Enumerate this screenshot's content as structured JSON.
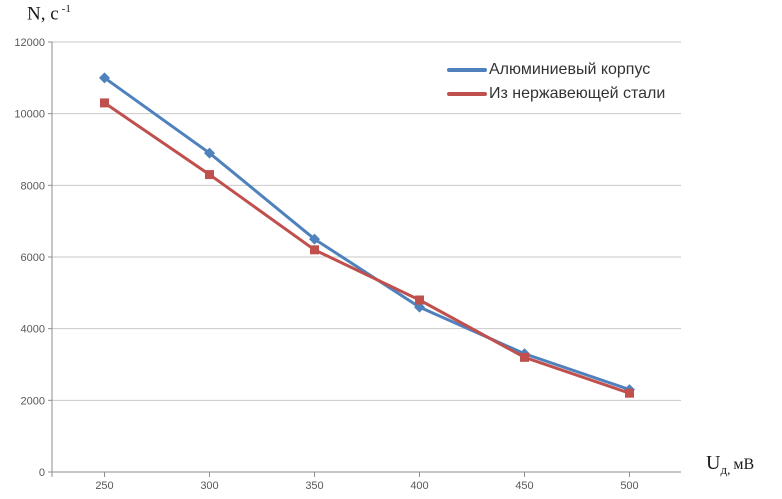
{
  "chart_data": {
    "type": "line",
    "x": [
      250,
      300,
      350,
      400,
      450,
      500
    ],
    "series": [
      {
        "name": "Алюминиевый корпус",
        "color": "#4F81BD",
        "marker": "diamond",
        "values": [
          11000,
          8900,
          6500,
          4600,
          3300,
          2300
        ]
      },
      {
        "name": "Из нержавеющей стали",
        "color": "#C0504D",
        "marker": "square",
        "values": [
          10300,
          8300,
          6200,
          4800,
          3200,
          2200
        ]
      }
    ],
    "ylabel": {
      "base": "N, с",
      "sup": "-1"
    },
    "xlabel": {
      "base": "U",
      "sub": "д,",
      "rest": "мВ"
    },
    "ylim": [
      0,
      12000
    ],
    "ytick_step": 2000,
    "xticks": [
      "250",
      "300",
      "350",
      "400",
      "450",
      "500"
    ],
    "yticks": [
      "0",
      "2000",
      "4000",
      "6000",
      "8000",
      "10000",
      "12000"
    ],
    "grid": "horizontal",
    "legend_position": "top-right-inside"
  },
  "colors": {
    "gridline": "#C9C9C9",
    "axis": "#8E8E8E",
    "tick_text": "#595959",
    "legend_text": "#333333",
    "title_text": "#1A1A1A"
  }
}
